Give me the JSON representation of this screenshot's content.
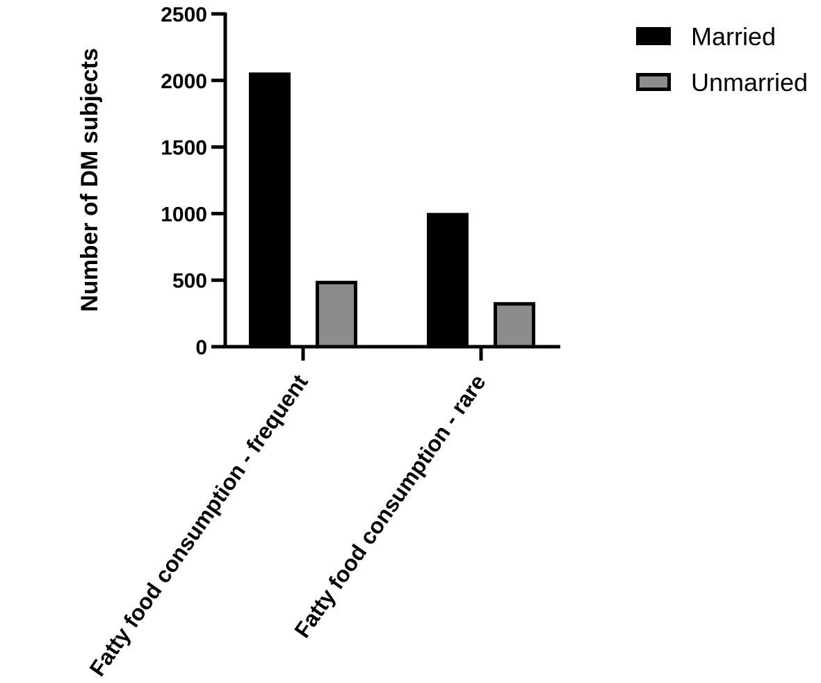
{
  "chart_data": {
    "type": "bar",
    "title": "",
    "xlabel": "",
    "ylabel": "Number of DM subjects",
    "ylim": [
      0,
      2500
    ],
    "yticks": [
      0,
      500,
      1000,
      1500,
      2000,
      2500
    ],
    "categories": [
      "Fatty food consumption - frequent",
      "Fatty food consumption - rare"
    ],
    "series": [
      {
        "name": "Married",
        "values": [
          2060,
          1005
        ],
        "color": "#000000",
        "border": "#000000"
      },
      {
        "name": "Unmarried",
        "values": [
          495,
          335
        ],
        "color": "#8c8c8c",
        "border": "#000000"
      }
    ],
    "grid": false,
    "legend_position": "top-right"
  }
}
